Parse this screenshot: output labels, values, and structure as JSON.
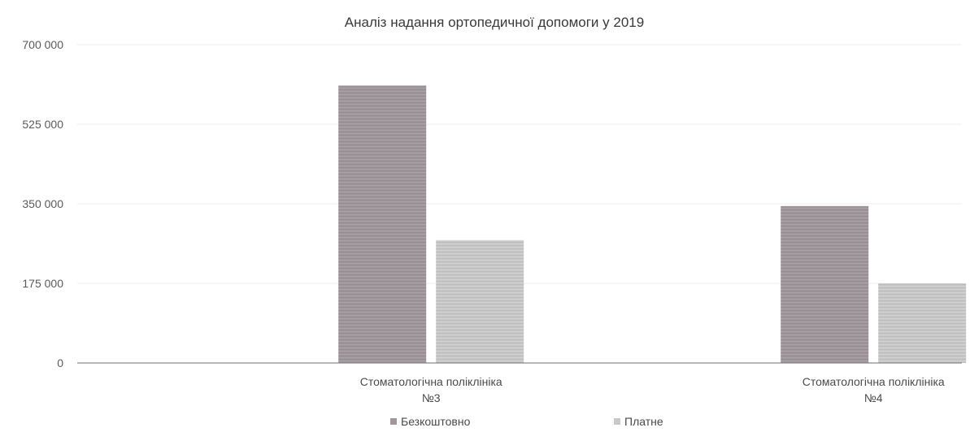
{
  "chart_data": {
    "type": "bar",
    "title": "Аналіз надання ортопедичної допомоги у 2019",
    "categories": [
      [
        "Стоматологічна поліклініка",
        "№3"
      ],
      [
        "Стоматологічна поліклініка",
        "№4"
      ]
    ],
    "series": [
      {
        "name": "Безкоштовно",
        "values": [
          610000,
          345000
        ],
        "color": "#9f979b"
      },
      {
        "name": "Платне",
        "values": [
          270000,
          175000
        ],
        "color": "#c8c8c8"
      }
    ],
    "ylim": [
      0,
      700000
    ],
    "yticks": [
      0,
      175000,
      350000,
      525000,
      700000
    ],
    "ytick_labels": [
      "0",
      "175 000",
      "350 000",
      "525 000",
      "700 000"
    ],
    "xlabel": "",
    "ylabel": "",
    "grid": true,
    "legend_position": "bottom"
  }
}
